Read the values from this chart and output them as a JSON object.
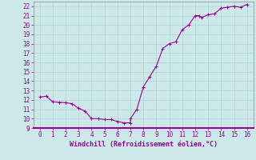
{
  "x": [
    0,
    0.5,
    1,
    1.5,
    2,
    2.5,
    3,
    3.5,
    4,
    4.5,
    5,
    5.5,
    6,
    6.5,
    7,
    7.0,
    7.5,
    8,
    8.5,
    9,
    9.5,
    10,
    10.5,
    11,
    11.5,
    12,
    12.3,
    12.5,
    13,
    13.5,
    14,
    14.5,
    15,
    15.5,
    16
  ],
  "y": [
    12.3,
    12.4,
    11.8,
    11.75,
    11.7,
    11.6,
    11.1,
    10.8,
    10.0,
    10.0,
    9.9,
    9.9,
    9.7,
    9.55,
    9.55,
    10.0,
    11.0,
    13.4,
    14.5,
    15.6,
    17.5,
    18.0,
    18.2,
    19.5,
    20.0,
    21.0,
    21.0,
    20.8,
    21.1,
    21.2,
    21.8,
    21.9,
    22.0,
    21.9,
    22.2
  ],
  "line_color": "#990099",
  "marker_color": "#990099",
  "bg_color": "#cce8e8",
  "grid_color": "#aacccc",
  "xlabel": "Windchill (Refroidissement éolien,°C)",
  "xlabel_color": "#990099",
  "tick_color": "#990099",
  "xlim": [
    -0.5,
    16.5
  ],
  "ylim": [
    9,
    22.5
  ],
  "yticks": [
    9,
    10,
    11,
    12,
    13,
    14,
    15,
    16,
    17,
    18,
    19,
    20,
    21,
    22
  ],
  "xticks": [
    0,
    1,
    2,
    3,
    4,
    5,
    6,
    7,
    8,
    9,
    10,
    11,
    12,
    13,
    14,
    15,
    16
  ],
  "axis_color": "#777777",
  "bottom_line_color": "#990099",
  "figsize": [
    3.2,
    2.0
  ],
  "dpi": 100
}
